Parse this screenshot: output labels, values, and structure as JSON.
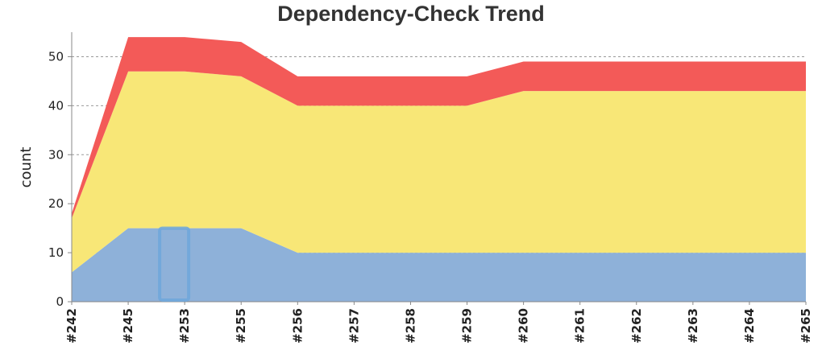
{
  "chart_data": {
    "type": "area",
    "stacked": true,
    "title": "Dependency-Check Trend",
    "xlabel": "",
    "ylabel": "count",
    "ylim": [
      0,
      55
    ],
    "yticks": [
      0,
      10,
      20,
      30,
      40,
      50
    ],
    "grid": true,
    "categories": [
      "#242",
      "#245",
      "#253",
      "#255",
      "#256",
      "#257",
      "#258",
      "#259",
      "#260",
      "#261",
      "#262",
      "#263",
      "#264",
      "#265"
    ],
    "series": [
      {
        "key": "blue",
        "color": "#8eb1d9",
        "values": [
          6,
          15,
          15,
          15,
          10,
          10,
          10,
          10,
          10,
          10,
          10,
          10,
          10,
          10
        ]
      },
      {
        "key": "yellow",
        "color": "#f8e777",
        "values": [
          11,
          32,
          32,
          31,
          30,
          30,
          30,
          30,
          33,
          33,
          33,
          33,
          33,
          33
        ]
      },
      {
        "key": "red",
        "color": "#f35a58",
        "values": [
          1,
          7,
          7,
          7,
          6,
          6,
          6,
          6,
          6,
          6,
          6,
          6,
          6,
          6
        ]
      }
    ],
    "selection_index": 2,
    "selection_color": "#6fa7db"
  }
}
